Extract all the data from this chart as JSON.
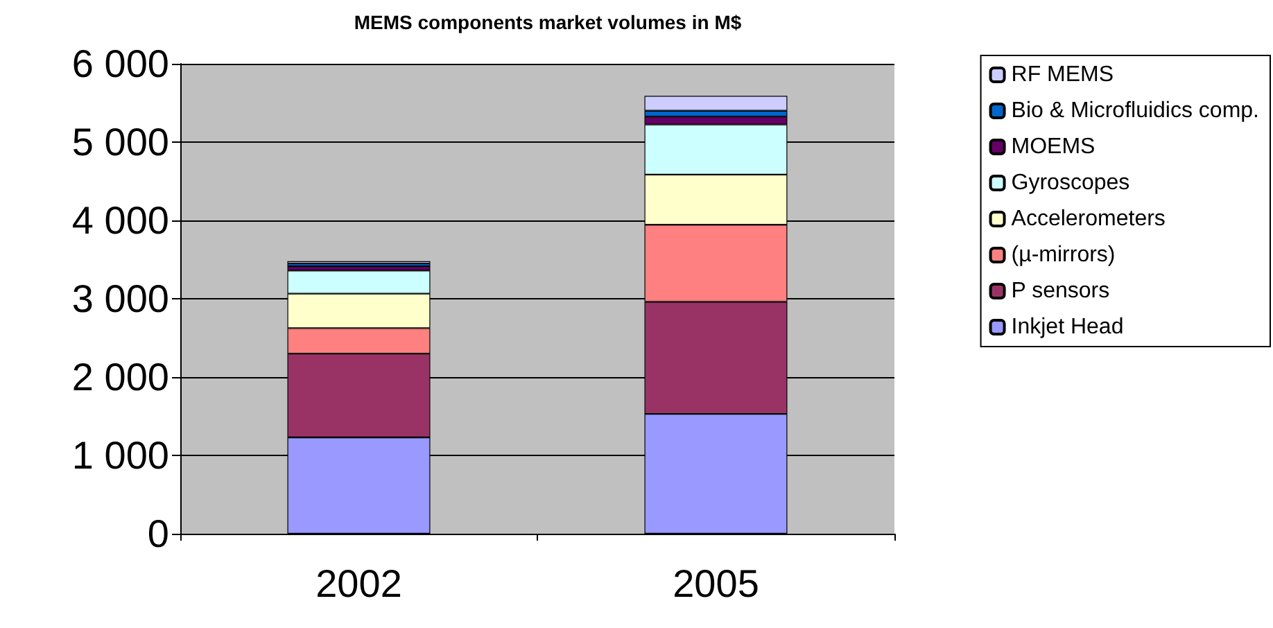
{
  "chart_data": {
    "type": "bar",
    "title": "MEMS components market volumes in M$",
    "categories": [
      "2002",
      "2005"
    ],
    "stacked": true,
    "series": [
      {
        "name": "Inkjet Head",
        "color": "#9999ff",
        "values": [
          1230,
          1530
        ]
      },
      {
        "name": "P sensors",
        "color": "#993366",
        "values": [
          1070,
          1430
        ]
      },
      {
        "name": "(µ-mirrors)",
        "color": "#ff8080",
        "values": [
          325,
          985
        ]
      },
      {
        "name": "Accelerometers",
        "color": "#ffffcc",
        "values": [
          440,
          640
        ]
      },
      {
        "name": "Gyroscopes",
        "color": "#ccffff",
        "values": [
          295,
          640
        ]
      },
      {
        "name": "MOEMS",
        "color": "#660066",
        "values": [
          55,
          100
        ]
      },
      {
        "name": "Bio & Microfluidics comp.",
        "color": "#0066cc",
        "values": [
          35,
          75
        ]
      },
      {
        "name": "RF MEMS",
        "color": "#ccccff",
        "values": [
          30,
          190
        ]
      }
    ],
    "ylim": [
      0,
      6000
    ],
    "yticks": [
      {
        "value": 0,
        "label": "0"
      },
      {
        "value": 1000,
        "label": "1 000"
      },
      {
        "value": 2000,
        "label": "2 000"
      },
      {
        "value": 3000,
        "label": "3 000"
      },
      {
        "value": 4000,
        "label": "4 000"
      },
      {
        "value": 5000,
        "label": "5 000"
      },
      {
        "value": 6000,
        "label": "6 000"
      }
    ],
    "grid": "y",
    "legend": "right"
  }
}
